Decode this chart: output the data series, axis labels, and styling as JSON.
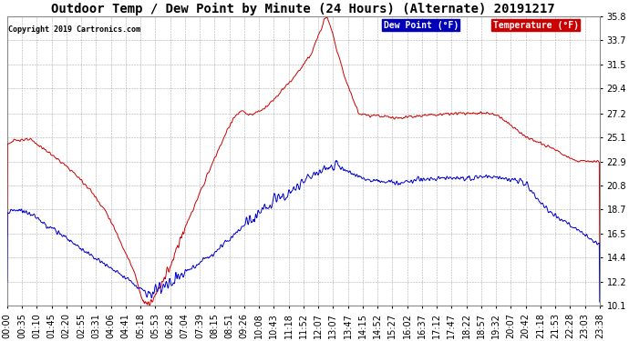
{
  "title": "Outdoor Temp / Dew Point by Minute (24 Hours) (Alternate) 20191217",
  "copyright": "Copyright 2019 Cartronics.com",
  "legend_dew": "Dew Point (°F)",
  "legend_temp": "Temperature (°F)",
  "ylim": [
    10.1,
    35.8
  ],
  "yticks": [
    10.1,
    12.2,
    14.4,
    16.5,
    18.7,
    20.8,
    22.9,
    25.1,
    27.2,
    29.4,
    31.5,
    33.7,
    35.8
  ],
  "x_tick_labels": [
    "00:00",
    "00:35",
    "01:10",
    "01:45",
    "02:20",
    "02:55",
    "03:31",
    "04:06",
    "04:41",
    "05:18",
    "05:53",
    "06:28",
    "07:04",
    "07:39",
    "08:15",
    "08:51",
    "09:26",
    "10:08",
    "10:43",
    "11:18",
    "11:52",
    "12:07",
    "13:07",
    "13:47",
    "14:15",
    "14:52",
    "15:27",
    "16:02",
    "16:37",
    "17:12",
    "17:47",
    "18:22",
    "18:57",
    "19:32",
    "20:07",
    "20:42",
    "21:18",
    "21:53",
    "22:28",
    "23:03",
    "23:38"
  ],
  "temp_color": "#cc0000",
  "dew_color": "#0000cc",
  "bg_color": "#ffffff",
  "grid_color": "#999999",
  "title_fontsize": 10,
  "axis_fontsize": 7
}
